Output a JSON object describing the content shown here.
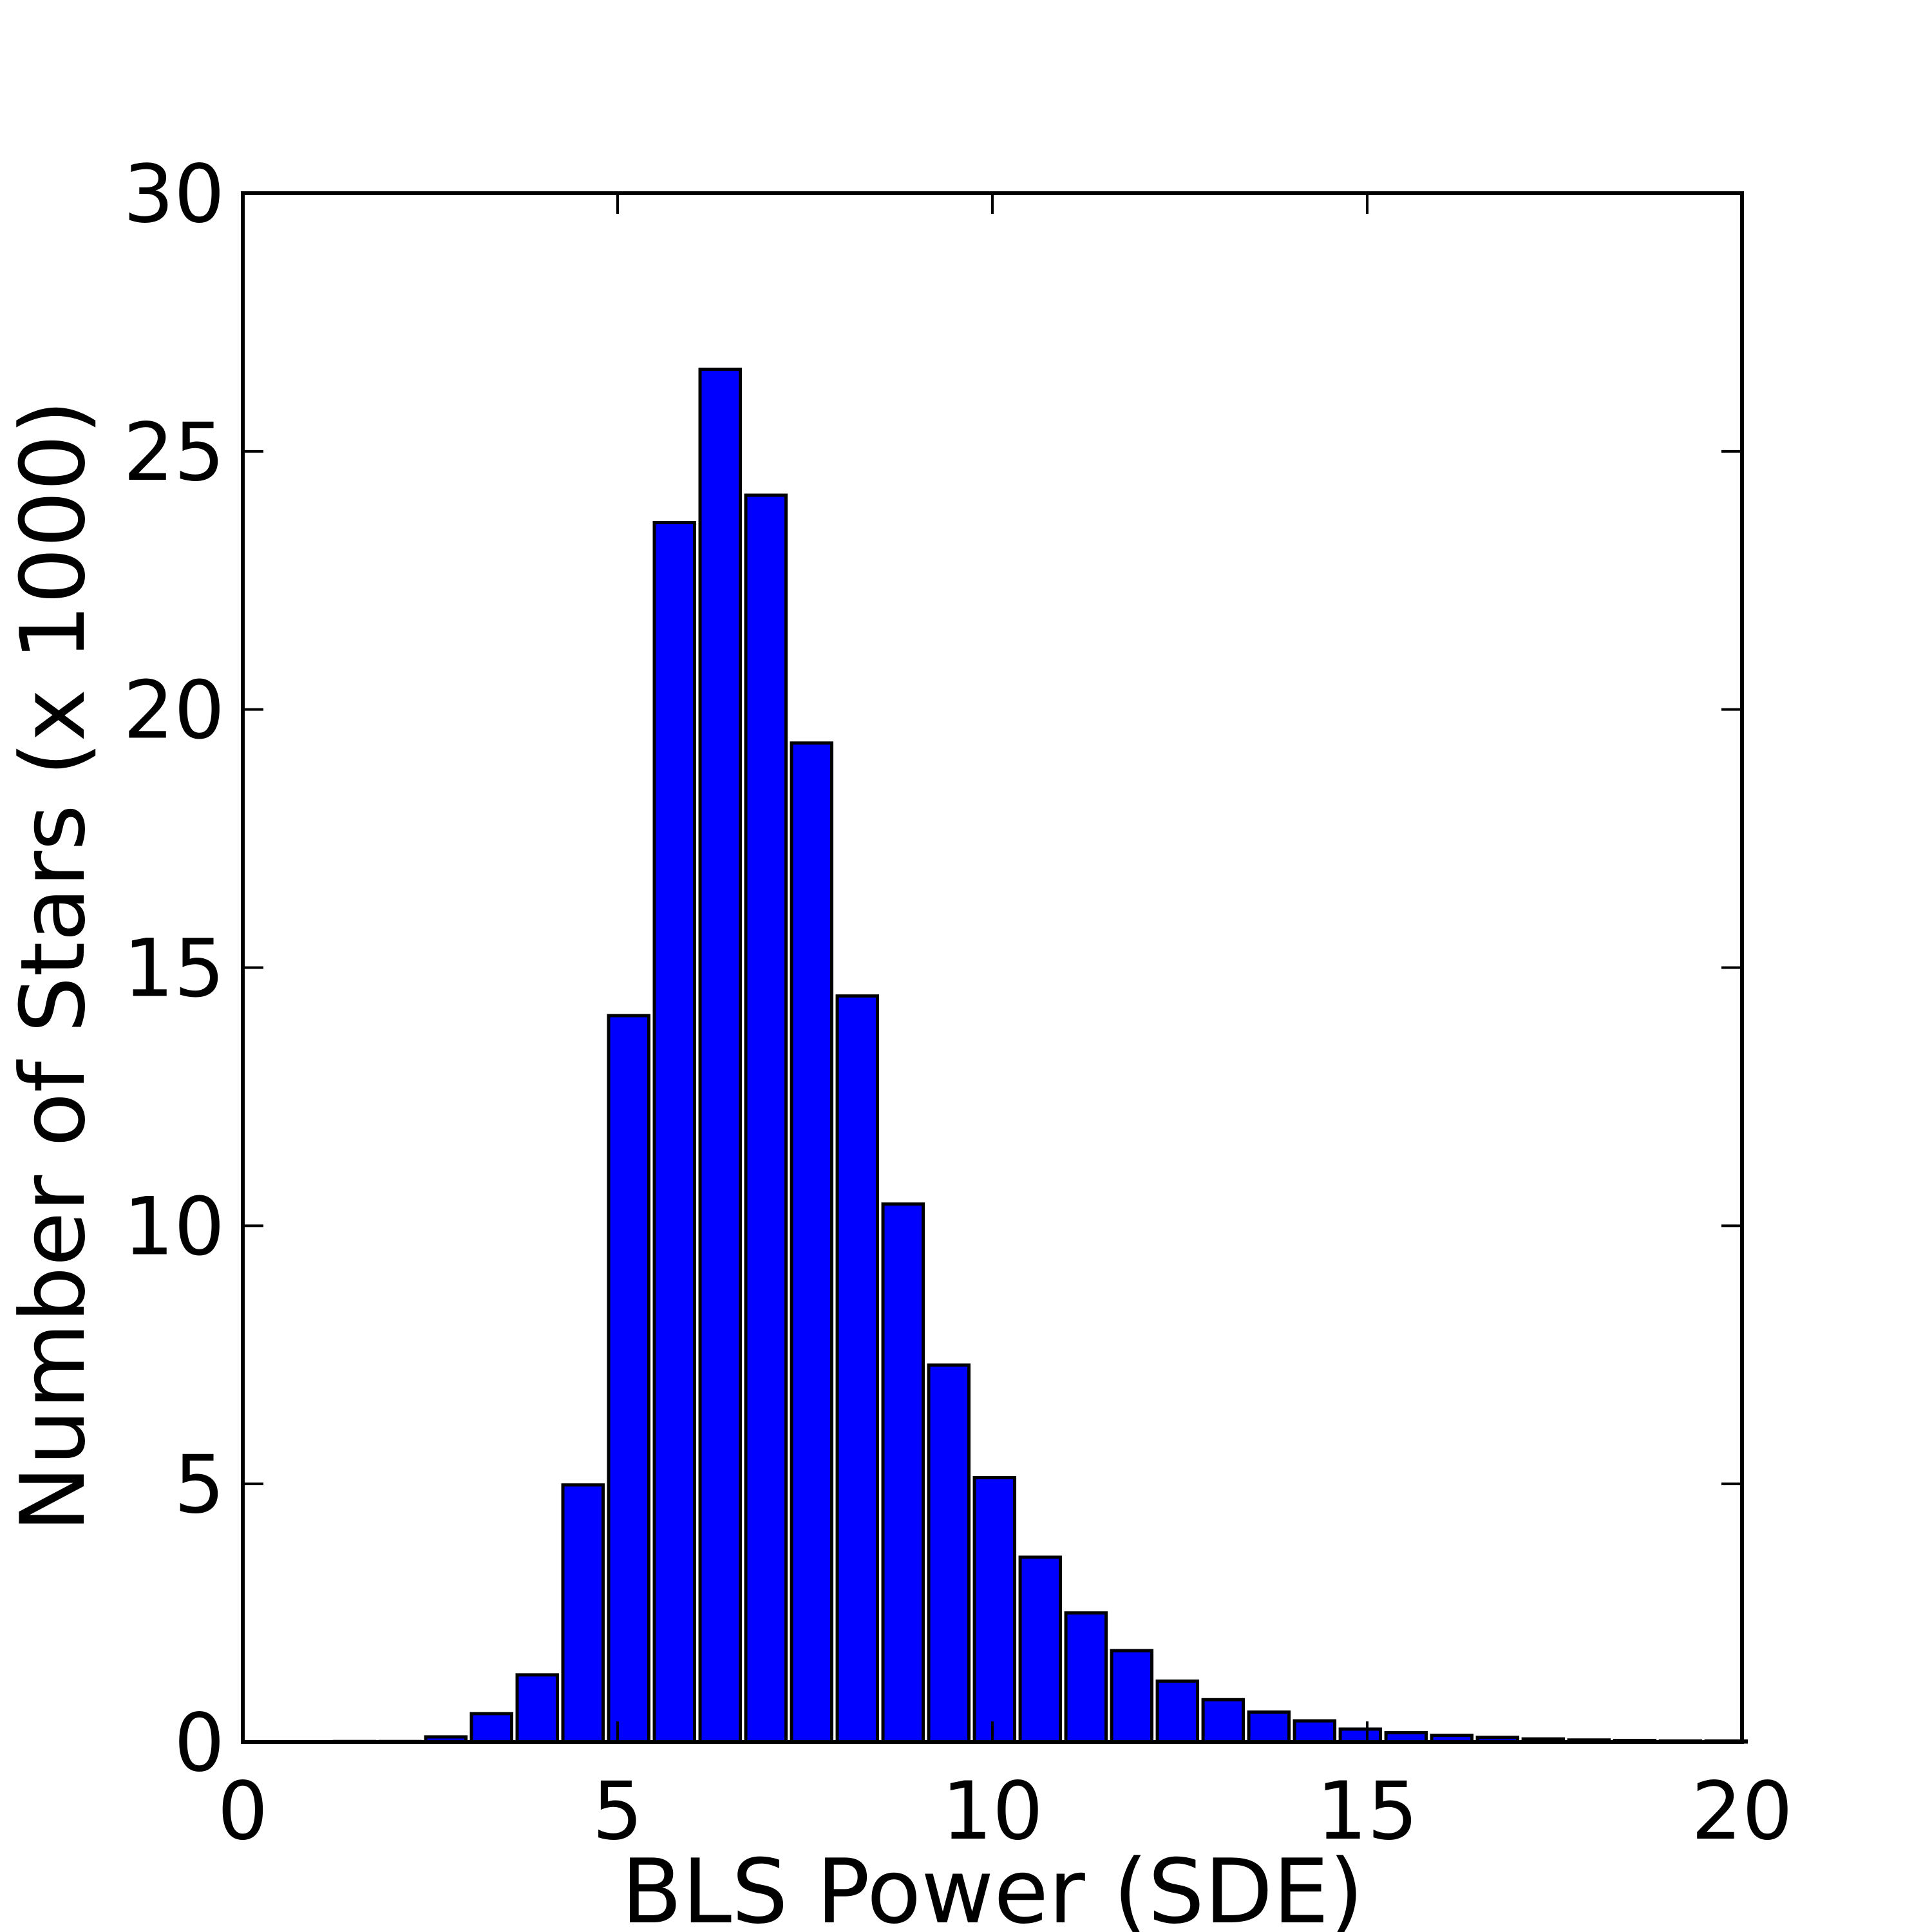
{
  "chart_data": {
    "type": "bar",
    "xlabel": "BLS Power (SDE)",
    "ylabel": "Number of Stars (x 1000)",
    "xlim": [
      0,
      20
    ],
    "ylim": [
      0,
      30
    ],
    "xticks": [
      0,
      5,
      10,
      15,
      20
    ],
    "yticks": [
      0,
      5,
      10,
      15,
      20,
      25,
      30
    ],
    "xtick_labels": [
      "0",
      "5",
      "10",
      "15",
      "20"
    ],
    "ytick_labels": [
      "0",
      "5",
      "10",
      "15",
      "20",
      "25",
      "30"
    ],
    "grid": false,
    "legend": "none",
    "bar_color": "#0000ff",
    "edge_color": "#000000",
    "bin_width": 0.61,
    "bars_x_start": [
      0.0,
      0.61,
      1.22,
      1.83,
      2.44,
      3.05,
      3.66,
      4.27,
      4.88,
      5.49,
      6.1,
      6.71,
      7.32,
      7.93,
      8.54,
      9.15,
      9.76,
      10.37,
      10.98,
      11.59,
      12.2,
      12.81,
      13.42,
      14.03,
      14.64,
      15.25,
      15.86,
      16.47,
      17.08,
      17.69,
      18.3,
      18.91,
      19.52
    ],
    "values": [
      0.0,
      0.0,
      0.01,
      0.01,
      0.1,
      0.55,
      1.3,
      4.98,
      14.07,
      23.62,
      26.59,
      24.15,
      19.35,
      14.45,
      10.42,
      7.3,
      5.12,
      3.58,
      2.5,
      1.77,
      1.18,
      0.82,
      0.58,
      0.41,
      0.25,
      0.18,
      0.13,
      0.09,
      0.06,
      0.04,
      0.03,
      0.02,
      0.02
    ]
  }
}
